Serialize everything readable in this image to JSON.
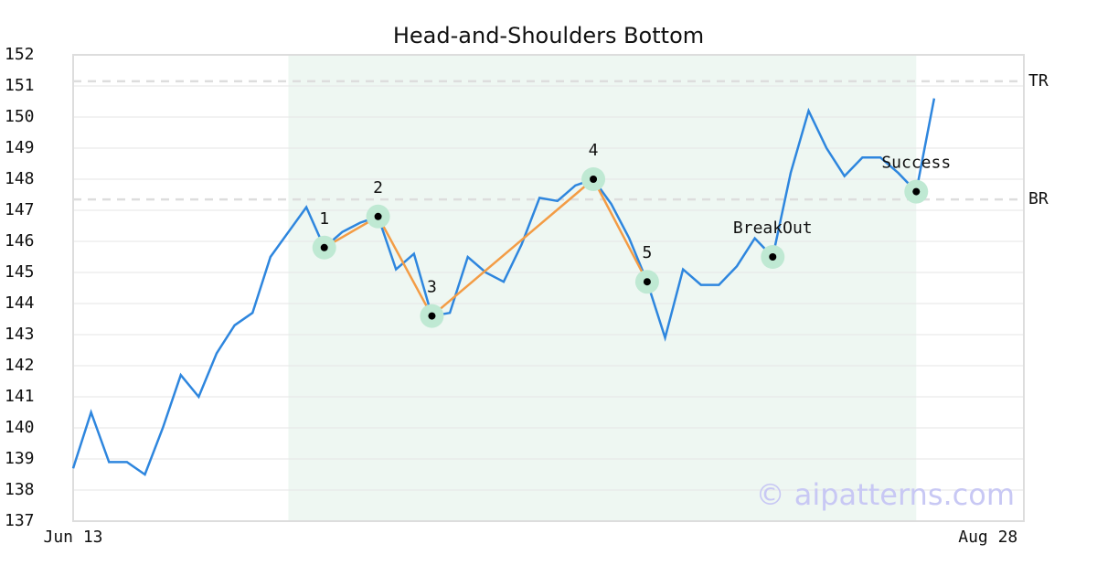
{
  "chart_data": {
    "type": "line",
    "title": "Head-and-Shoulders Bottom",
    "x": [
      0,
      1,
      2,
      3,
      4,
      5,
      6,
      7,
      8,
      9,
      10,
      11,
      12,
      13,
      14,
      15,
      16,
      17,
      18,
      19,
      20,
      21,
      22,
      23,
      24,
      25,
      26,
      27,
      28,
      29,
      30,
      31,
      32,
      33,
      34,
      35,
      36,
      37,
      38,
      39,
      40,
      41,
      42,
      43,
      44,
      45,
      46,
      47,
      48
    ],
    "values": [
      138.7,
      140.5,
      138.9,
      138.9,
      138.5,
      140.0,
      141.7,
      141.0,
      142.4,
      143.3,
      143.7,
      145.5,
      146.3,
      147.1,
      145.8,
      146.3,
      146.6,
      146.8,
      145.1,
      145.6,
      143.6,
      143.7,
      145.5,
      145.0,
      144.7,
      145.9,
      147.4,
      147.3,
      147.8,
      148.0,
      147.2,
      146.1,
      144.7,
      142.9,
      145.1,
      144.6,
      144.6,
      145.2,
      146.1,
      145.5,
      148.2,
      150.2,
      149.0,
      148.1,
      148.7,
      148.7,
      148.2,
      147.6,
      150.6
    ],
    "color": "#2e86de",
    "xlim": [
      0,
      53
    ],
    "xticks": [
      {
        "value": 0,
        "label": "Jun 13"
      },
      {
        "value": 51,
        "label": "Aug 28"
      }
    ],
    "ylim": [
      137,
      152
    ],
    "yticks": [
      137,
      138,
      139,
      140,
      141,
      142,
      143,
      144,
      145,
      146,
      147,
      148,
      149,
      150,
      151,
      152
    ],
    "grid": true,
    "highlight_range": [
      12,
      47
    ],
    "levels": [
      {
        "label": "TR",
        "value": 151.15
      },
      {
        "label": "BR",
        "value": 147.35
      }
    ],
    "pattern_color": "#f39c45",
    "pattern_points": [
      {
        "label": "1",
        "x": 14,
        "y": 145.8
      },
      {
        "label": "2",
        "x": 17,
        "y": 146.8
      },
      {
        "label": "3",
        "x": 20,
        "y": 143.6
      },
      {
        "label": "4",
        "x": 29,
        "y": 148.0
      },
      {
        "label": "5",
        "x": 32,
        "y": 144.7
      }
    ],
    "event_points": [
      {
        "label": "BreakOut",
        "x": 39,
        "y": 145.5
      },
      {
        "label": "Success",
        "x": 47,
        "y": 147.6
      }
    ],
    "watermark": "© aipatterns.com"
  }
}
